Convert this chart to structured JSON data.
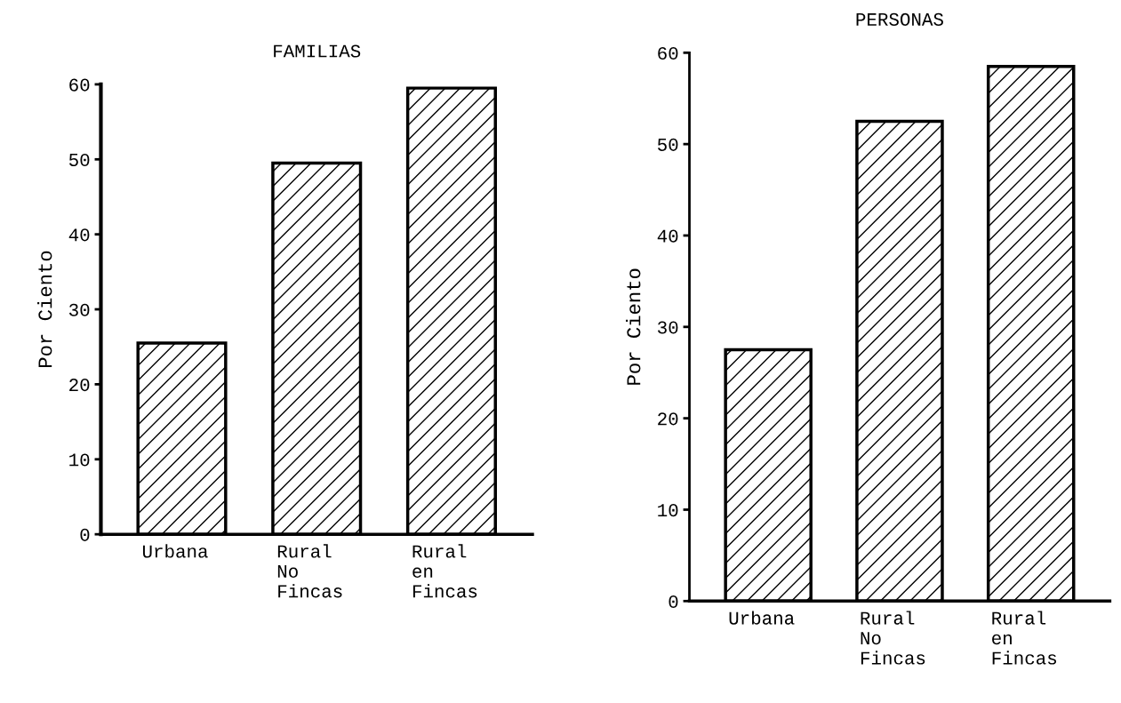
{
  "chart_data": [
    {
      "type": "bar",
      "title": "FAMILIAS",
      "ylabel": "Por Ciento",
      "categories": [
        "Urbana",
        "Rural\nNo\nFincas",
        "Rural\nen\nFincas"
      ],
      "values": [
        25.5,
        49.5,
        59.5
      ],
      "color": "#000000",
      "ylim": [
        0,
        60
      ],
      "yticks": [
        0,
        10,
        20,
        30,
        40,
        50,
        60
      ],
      "grid": false,
      "legend": false
    },
    {
      "type": "bar",
      "title": "PERSONAS",
      "ylabel": "Por Ciento",
      "categories": [
        "Urbana",
        "Rural\nNo\nFincas",
        "Rural\nen\nFincas"
      ],
      "values": [
        27.5,
        52.5,
        58.5
      ],
      "color": "#000000",
      "ylim": [
        0,
        60
      ],
      "yticks": [
        0,
        10,
        20,
        30,
        40,
        50,
        60
      ],
      "grid": false,
      "legend": false
    }
  ]
}
